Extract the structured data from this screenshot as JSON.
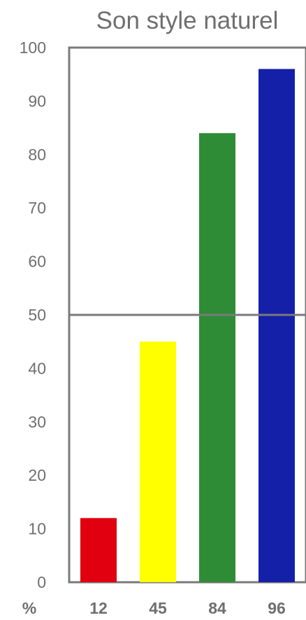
{
  "chart_data": {
    "type": "bar",
    "title": "Son style naturel",
    "x_axis_prefix": "%",
    "categories": [
      "12",
      "45",
      "84",
      "96"
    ],
    "values": [
      12,
      45,
      84,
      96
    ],
    "colors": [
      "#e0000f",
      "#ffff00",
      "#2f8c36",
      "#1520a8"
    ],
    "ylim": [
      0,
      100
    ],
    "yticks": [
      "0",
      "10",
      "20",
      "30",
      "40",
      "50",
      "60",
      "70",
      "80",
      "90",
      "100"
    ],
    "reference_line": 50,
    "grid": false,
    "legend": "none"
  }
}
